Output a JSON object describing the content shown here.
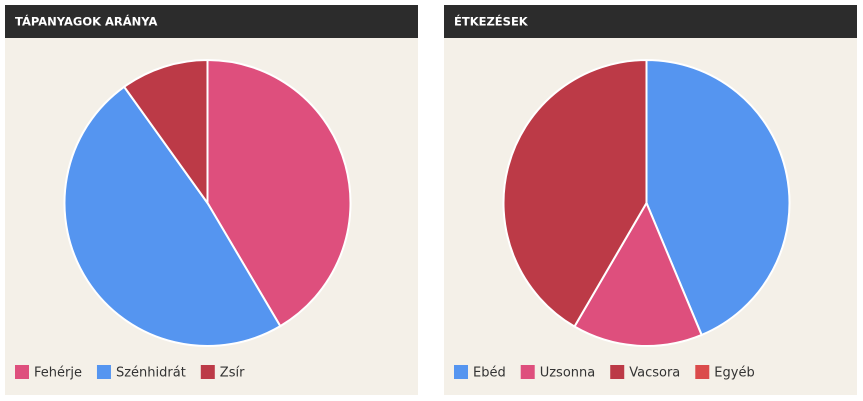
{
  "chart_data": [
    {
      "type": "pie",
      "title": "TÁPANYAGOK ARÁNYA",
      "categories": [
        "Fehérje",
        "Szénhidrát",
        "Zsír"
      ],
      "values": [
        41.5,
        48.6,
        9.9
      ],
      "colors": [
        "#de4f7d",
        "#5595f0",
        "#bc3a47"
      ]
    },
    {
      "type": "pie",
      "title": "ÉTKEZÉSEK",
      "categories": [
        "Ebéd",
        "Uzsonna",
        "Vacsora",
        "Egyéb"
      ],
      "values": [
        43.7,
        14.7,
        41.6,
        0
      ],
      "colors": [
        "#5595f0",
        "#de4f7d",
        "#bc3a47",
        "#db4b4b"
      ]
    }
  ]
}
